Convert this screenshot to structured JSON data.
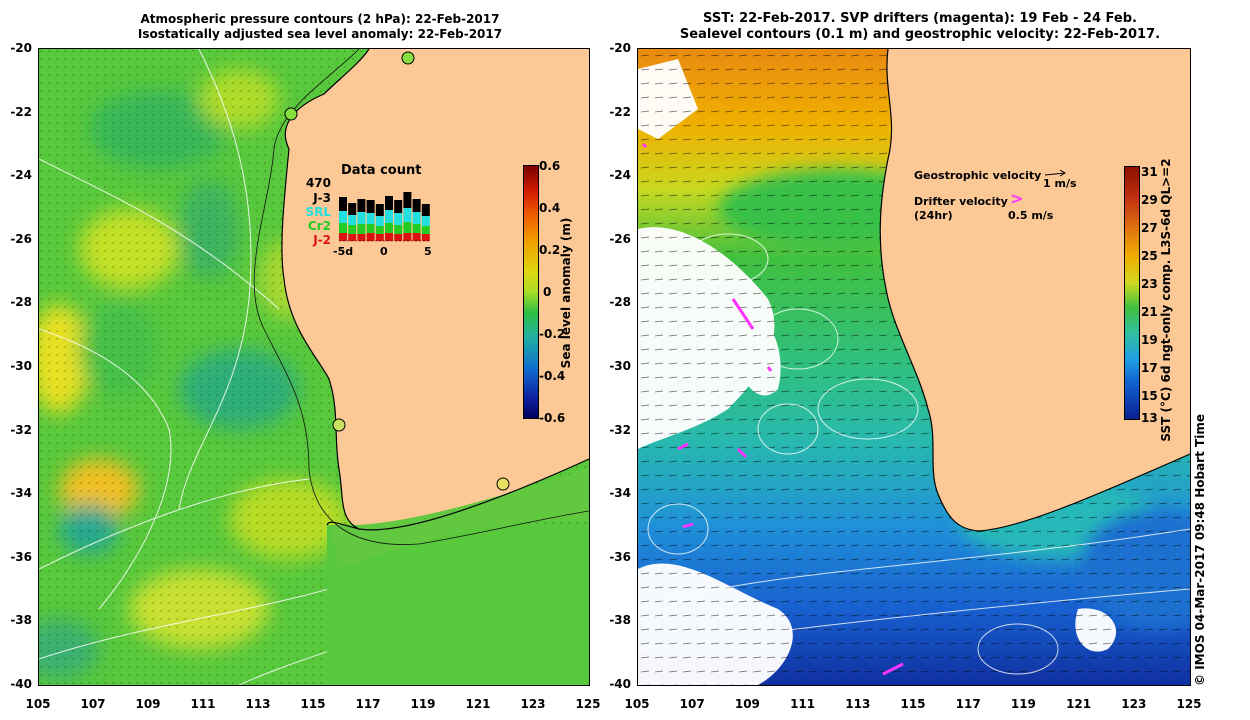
{
  "left_panel": {
    "title_line1": "Atmospheric pressure contours (2 hPa): 22-Feb-2017",
    "title_line2": "Isostatically adjusted sea level anomaly: 22-Feb-2017",
    "data_count": {
      "title": "Data count",
      "total": "470",
      "legend": [
        {
          "label": "J-3",
          "color": "#000000"
        },
        {
          "label": "SRL",
          "color": "#22e0e0"
        },
        {
          "label": "Cr2",
          "color": "#22cc22"
        },
        {
          "label": "J-2",
          "color": "#dd1111"
        }
      ],
      "axis_labels": [
        "-5d",
        "0",
        "5"
      ]
    },
    "colorbar": {
      "label": "Sea level anomaly (m)",
      "ticks": [
        "0.6",
        "0.4",
        "0.2",
        "0",
        "-0.2",
        "-0.4",
        "-0.6"
      ]
    }
  },
  "right_panel": {
    "title_line1": "SST: 22-Feb-2017. SVP drifters (magenta): 19 Feb - 24 Feb.",
    "title_line2": "Sealevel contours (0.1 m) and geostrophic velocity: 22-Feb-2017.",
    "geo_velocity_label": "Geostrophic velocity",
    "geo_velocity_scale": "1 m/s",
    "drifter_velocity_label": "Drifter velocity",
    "drifter_velocity_sub": "(24hr)",
    "drifter_velocity_scale": "0.5 m/s",
    "drifter_symbol": ">",
    "colorbar": {
      "label": "SST (°C) 6d ngt-only comp. L3S-6d QL>=2",
      "ticks": [
        "31",
        "29",
        "27",
        "25",
        "23",
        "21",
        "19",
        "17",
        "15",
        "13"
      ]
    }
  },
  "y_ticks": [
    "-20",
    "-22",
    "-24",
    "-26",
    "-28",
    "-30",
    "-32",
    "-34",
    "-36",
    "-38",
    "-40"
  ],
  "x_ticks": [
    "105",
    "107",
    "109",
    "111",
    "113",
    "115",
    "117",
    "119",
    "121",
    "123",
    "125"
  ],
  "footer": "© IMOS 04-Mar-2017 09:48 Hobart Time"
}
